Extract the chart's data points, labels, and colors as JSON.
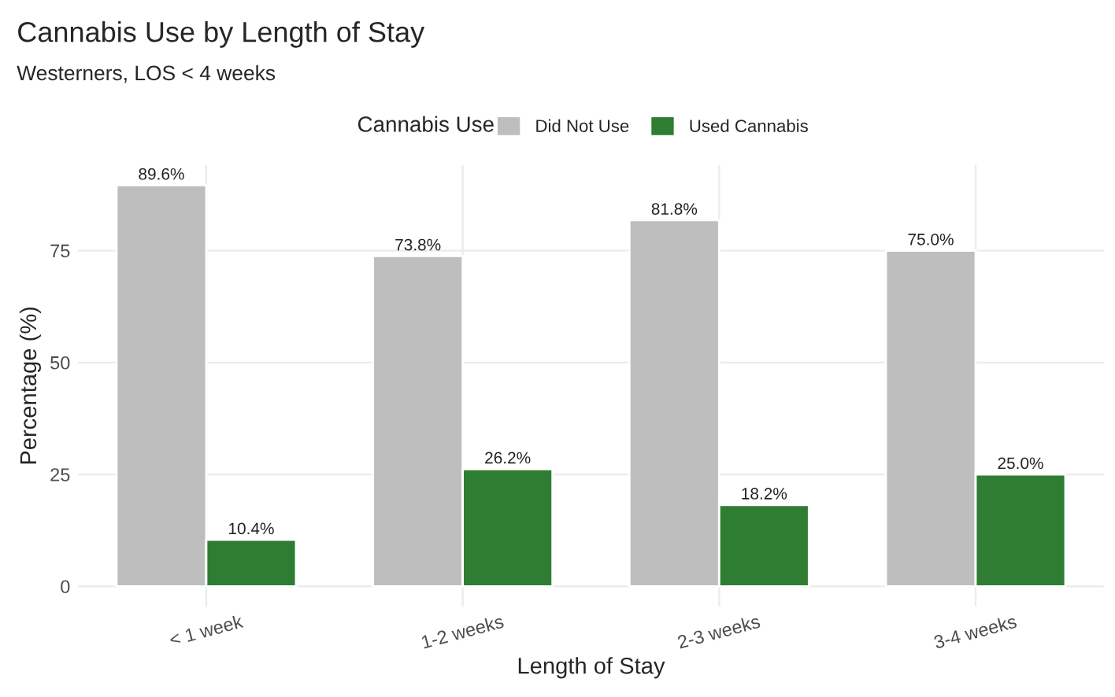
{
  "chart_data": {
    "type": "bar",
    "title": "Cannabis Use by Length of Stay",
    "subtitle": "Westerners, LOS < 4 weeks",
    "xlabel": "Length of Stay",
    "ylabel": "Percentage (%)",
    "legend_title": "Cannabis Use",
    "categories": [
      "< 1 week",
      "1-2 weeks",
      "2-3 weeks",
      "3-4 weeks"
    ],
    "series": [
      {
        "name": "Did Not Use",
        "color": "#bebebe",
        "values": [
          89.6,
          73.8,
          81.8,
          75.0
        ],
        "value_labels": [
          "89.6%",
          "73.8%",
          "81.8%",
          "75.0%"
        ]
      },
      {
        "name": "Used Cannabis",
        "color": "#2e7d32",
        "values": [
          10.4,
          26.2,
          18.2,
          25.0
        ],
        "value_labels": [
          "10.4%",
          "26.2%",
          "18.2%",
          "25.0%"
        ]
      }
    ],
    "ylim": [
      -4.48,
      94.08
    ],
    "yticks": [
      0,
      25,
      50,
      75
    ],
    "grid": true,
    "legend": "top"
  }
}
